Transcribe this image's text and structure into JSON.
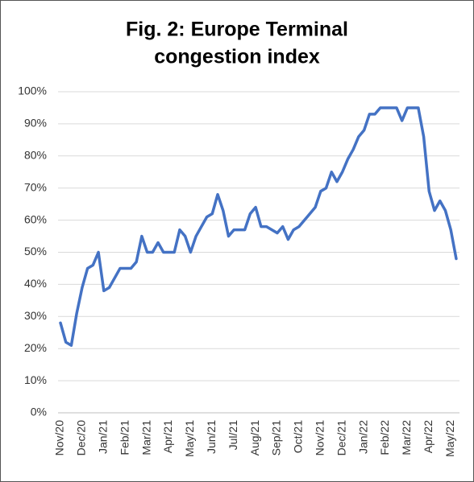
{
  "chart_data": {
    "type": "line",
    "title": "Fig. 2: Europe Terminal",
    "subtitle": "congestion index",
    "categories": [
      "Nov/20",
      null,
      null,
      null,
      "Dec/20",
      null,
      null,
      null,
      "Jan/21",
      null,
      null,
      null,
      "Feb/21",
      null,
      null,
      null,
      "Mar/21",
      null,
      null,
      null,
      "Apr/21",
      null,
      null,
      null,
      "May/21",
      null,
      null,
      null,
      "Jun/21",
      null,
      null,
      null,
      "Jul/21",
      null,
      null,
      null,
      "Aug/21",
      null,
      null,
      null,
      "Sep/21",
      null,
      null,
      null,
      "Oct/21",
      null,
      null,
      null,
      "Nov/21",
      null,
      null,
      null,
      "Dec/21",
      null,
      null,
      null,
      "Jan/22",
      null,
      null,
      null,
      "Feb/22",
      null,
      null,
      null,
      "Mar/22",
      null,
      null,
      null,
      "Apr/22",
      null,
      null,
      null,
      "May/22",
      null
    ],
    "series": [
      {
        "name": "Europe Terminal congestion index",
        "color": "#4472c4",
        "values": [
          28,
          22,
          21,
          31,
          39,
          45,
          46,
          50,
          38,
          39,
          42,
          45,
          45,
          45,
          47,
          55,
          50,
          50,
          53,
          50,
          50,
          50,
          57,
          55,
          50,
          55,
          58,
          61,
          62,
          68,
          63,
          55,
          57,
          57,
          57,
          62,
          64,
          58,
          58,
          57,
          56,
          58,
          54,
          57,
          58,
          60,
          62,
          64,
          69,
          70,
          75,
          72,
          75,
          79,
          82,
          86,
          88,
          93,
          93,
          95,
          95,
          95,
          95,
          91,
          95,
          95,
          95,
          86,
          69,
          63,
          66,
          63,
          57,
          48
        ]
      }
    ],
    "ylim": [
      0,
      100
    ],
    "yticks": [
      {
        "value": 0,
        "label": "0%"
      },
      {
        "value": 10,
        "label": "10%"
      },
      {
        "value": 20,
        "label": "20%"
      },
      {
        "value": 30,
        "label": "30%"
      },
      {
        "value": 40,
        "label": "40%"
      },
      {
        "value": 50,
        "label": "50%"
      },
      {
        "value": 60,
        "label": "60%"
      },
      {
        "value": 70,
        "label": "70%"
      },
      {
        "value": 80,
        "label": "80%"
      },
      {
        "value": 90,
        "label": "90%"
      },
      {
        "value": 100,
        "label": "100%"
      }
    ],
    "grid": true
  }
}
